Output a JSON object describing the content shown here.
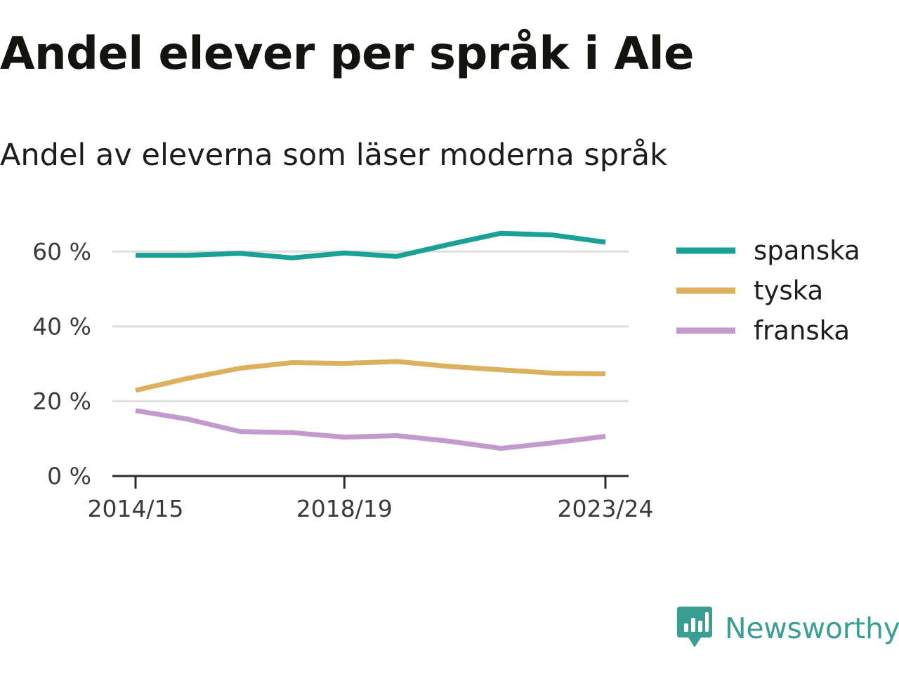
{
  "header": {
    "title": "Andel elever per språk i Ale",
    "subtitle": "Andel av eleverna som läser moderna språk"
  },
  "brand": {
    "name": "Newsworthy",
    "icon": "newsworthy-logo-icon",
    "color": "#3a9e93"
  },
  "chart_data": {
    "type": "line",
    "x": [
      "2014/15",
      "2015/16",
      "2016/17",
      "2017/18",
      "2018/19",
      "2019/20",
      "2020/21",
      "2021/22",
      "2022/23",
      "2023/24"
    ],
    "x_ticks": [
      "2014/15",
      "2018/19",
      "2023/24"
    ],
    "y_ticks": [
      0,
      20,
      40,
      60
    ],
    "y_tick_labels": [
      "0 %",
      "20 %",
      "40 %",
      "60 %"
    ],
    "ylim": [
      0,
      70
    ],
    "grid": true,
    "legend_position": "right",
    "series": [
      {
        "name": "spanska",
        "color": "#1aa196",
        "values": [
          59,
          59,
          59.5,
          58.3,
          59.6,
          58.7,
          61.9,
          64.9,
          64.4,
          62.5
        ]
      },
      {
        "name": "tyska",
        "color": "#dcb05c",
        "values": [
          22.9,
          26.1,
          28.8,
          30.3,
          30.1,
          30.6,
          29.3,
          28.4,
          27.5,
          27.3
        ]
      },
      {
        "name": "franska",
        "color": "#c29ace",
        "values": [
          17.5,
          15.2,
          11.9,
          11.6,
          10.4,
          10.8,
          9.3,
          7.4,
          8.9,
          10.6
        ]
      }
    ]
  }
}
